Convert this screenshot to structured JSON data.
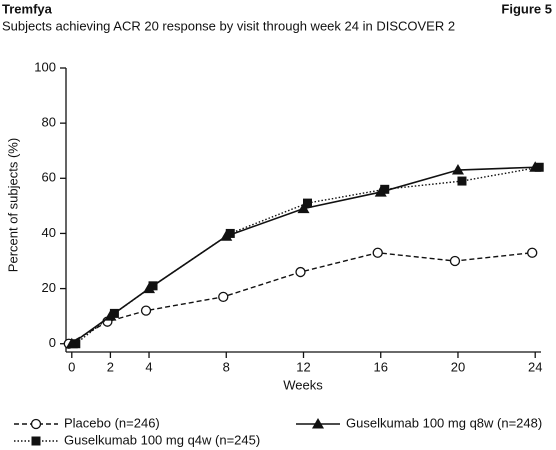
{
  "chart_data": {
    "type": "line",
    "header": "Tremfya",
    "figure_label": "Figure 5",
    "title": "Subjects achieving ACR 20 response by visit through week 24 in DISCOVER 2",
    "x_label": "Weeks",
    "y_label": "Percent of subjects (%)",
    "x": [
      0,
      2,
      4,
      8,
      12,
      16,
      20,
      24
    ],
    "xlim": [
      -0.3,
      24.3
    ],
    "xticks": [
      0,
      2,
      4,
      8,
      12,
      16,
      20,
      24
    ],
    "ylim": [
      -3,
      100
    ],
    "yticks": [
      0,
      20,
      40,
      60,
      80,
      100
    ],
    "grid": false,
    "series": [
      {
        "name": "Placebo (n=246)",
        "color": "#111111",
        "marker": "circle",
        "line_style": "dashed",
        "values": [
          0,
          8,
          12,
          17,
          26,
          33,
          30,
          33
        ]
      },
      {
        "name": "Guselkumab 100 mg q4w (n=245)",
        "color": "#111111",
        "marker": "square",
        "line_style": "dotted",
        "values": [
          0,
          11,
          21,
          40,
          51,
          56,
          59,
          64
        ]
      },
      {
        "name": "Guselkumab 100 mg q8w (n=248)",
        "color": "#111111",
        "marker": "triangle",
        "line_style": "solid",
        "values": [
          0,
          10,
          20,
          39,
          49,
          55,
          63,
          64
        ]
      }
    ]
  }
}
